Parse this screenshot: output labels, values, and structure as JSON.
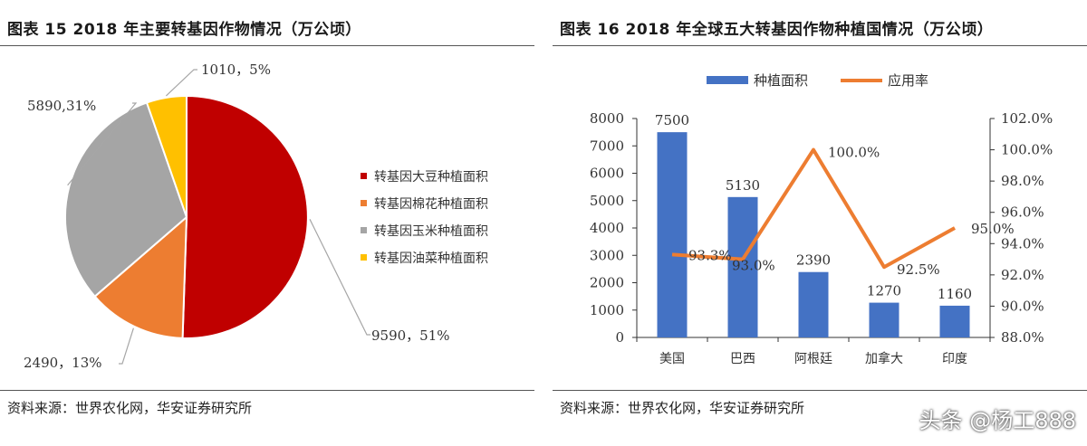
{
  "left": {
    "title": "图表 15 2018 年主要转基因作物情况（万公顷）",
    "source": "资料来源：世界农化网，华安证券研究所"
  },
  "right": {
    "title": "图表 16 2018 年全球五大转基因作物种植国情况（万公顷）",
    "source": "资料来源：世界农化网，华安证券研究所"
  },
  "watermark": "头条 @杨工888",
  "chart_data": [
    {
      "type": "pie",
      "slices": [
        {
          "name": "转基因大豆种植面积",
          "value": 9590,
          "label": "9590，51%",
          "color": "#C00000"
        },
        {
          "name": "转基因棉花种植面积",
          "value": 2490,
          "label": "2490，13%",
          "color": "#ED7D31"
        },
        {
          "name": "转基因玉米种植面积",
          "value": 5890,
          "label": "5890,31%",
          "color": "#A5A5A5"
        },
        {
          "name": "转基因油菜种植面积",
          "value": 1010,
          "label": "1010，5%",
          "color": "#FFC000"
        }
      ],
      "legend_position": "right"
    },
    {
      "type": "bar+line",
      "categories": [
        "美国",
        "巴西",
        "阿根廷",
        "加拿大",
        "印度"
      ],
      "series": [
        {
          "name": "种植面积",
          "type": "bar",
          "axis": "left",
          "color": "#4472C4",
          "values": [
            7500,
            5130,
            2390,
            1270,
            1160
          ],
          "labels": [
            "7500",
            "5130",
            "2390",
            "1270",
            "1160"
          ]
        },
        {
          "name": "应用率",
          "type": "line",
          "axis": "right",
          "color": "#ED7D31",
          "values": [
            93.3,
            93.0,
            100.0,
            92.5,
            95.0
          ],
          "labels": [
            "93.3%",
            "93.0%",
            "100.0%",
            "92.5%",
            "95.0%"
          ]
        }
      ],
      "y_left": {
        "min": 0,
        "max": 8000,
        "step": 1000,
        "ticks": [
          "0",
          "1000",
          "2000",
          "3000",
          "4000",
          "5000",
          "6000",
          "7000",
          "8000"
        ]
      },
      "y_right": {
        "min": 88,
        "max": 102,
        "step": 2,
        "ticks": [
          "88.0%",
          "90.0%",
          "92.0%",
          "94.0%",
          "96.0%",
          "98.0%",
          "100.0%",
          "102.0%"
        ]
      },
      "legend_position": "top",
      "grid": false
    }
  ]
}
